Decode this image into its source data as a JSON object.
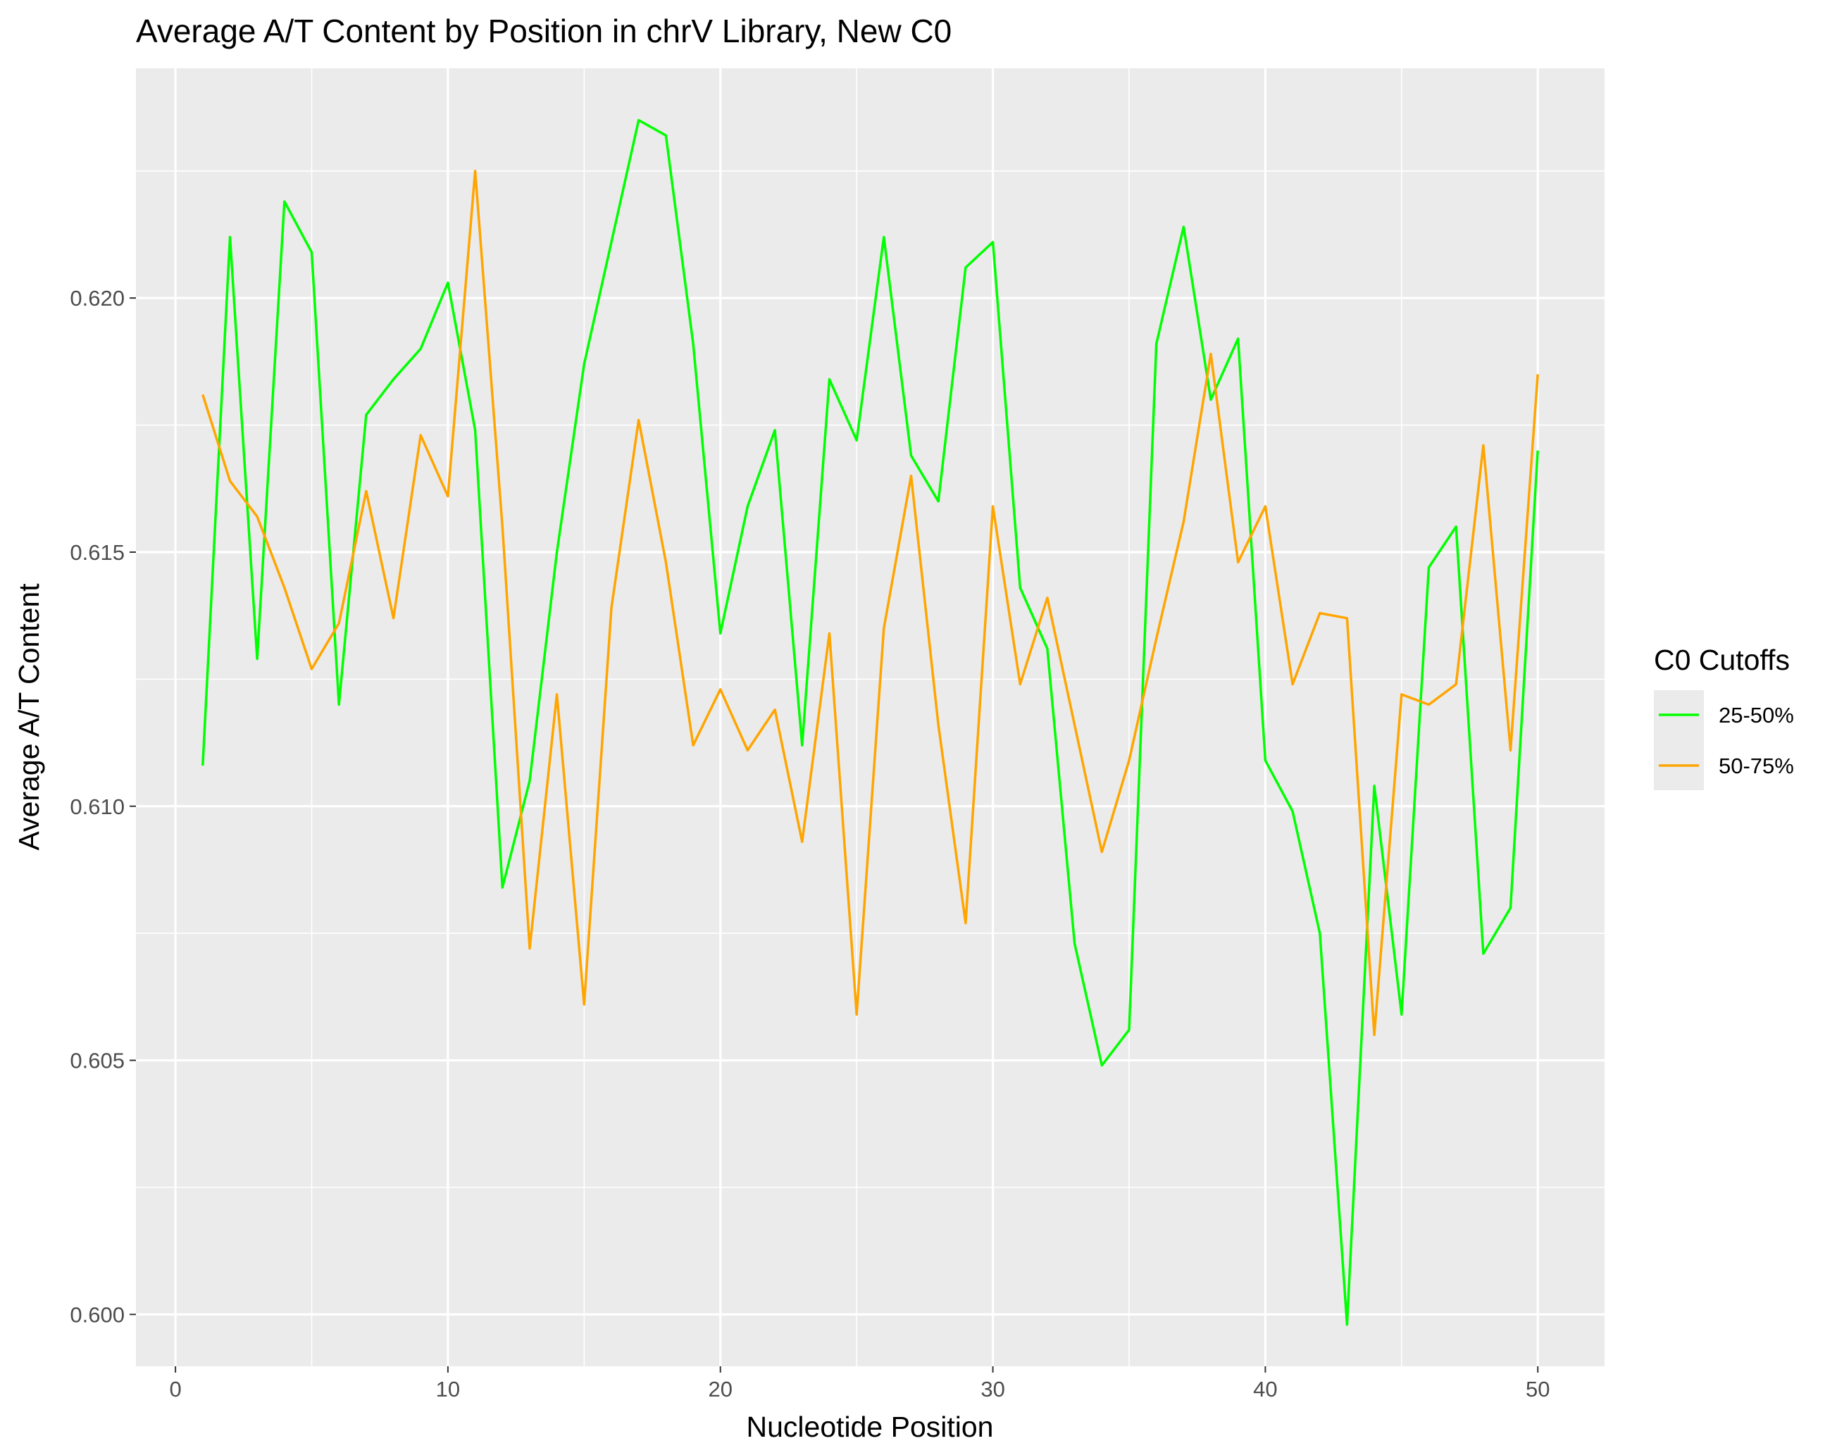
{
  "chart_data": {
    "type": "line",
    "title": "Average A/T Content by Position in chrV Library, New C0",
    "xlabel": "Nucleotide Position",
    "ylabel": "Average A/T Content",
    "xlim": [
      -1.45,
      52.45
    ],
    "ylim": [
      0.59898,
      0.62452
    ],
    "x_ticks": [
      0,
      10,
      20,
      30,
      40,
      50
    ],
    "x_tick_labels": [
      "0",
      "10",
      "20",
      "30",
      "40",
      "50"
    ],
    "x_minor_ticks": [
      5,
      15,
      25,
      35,
      45
    ],
    "y_ticks": [
      0.6,
      0.605,
      0.61,
      0.615,
      0.62
    ],
    "y_tick_labels": [
      "0.600",
      "0.605",
      "0.610",
      "0.615",
      "0.620"
    ],
    "y_minor_ticks": [
      0.6025,
      0.6075,
      0.6125,
      0.6175,
      0.6225
    ],
    "grid": true,
    "legend": {
      "title": "C0 Cutoffs",
      "position": "right"
    },
    "x": [
      1,
      2,
      3,
      4,
      5,
      6,
      7,
      8,
      9,
      10,
      11,
      12,
      13,
      14,
      15,
      16,
      17,
      18,
      19,
      20,
      21,
      22,
      23,
      24,
      25,
      26,
      27,
      28,
      29,
      30,
      31,
      32,
      33,
      34,
      35,
      36,
      37,
      38,
      39,
      40,
      41,
      42,
      43,
      44,
      45,
      46,
      47,
      48,
      49,
      50
    ],
    "series": [
      {
        "name": "25-50%",
        "color": "#00ff00",
        "values": [
          0.6108,
          0.6212,
          0.6129,
          0.6219,
          0.6209,
          0.612,
          0.6177,
          0.6184,
          0.619,
          0.6203,
          0.6174,
          0.6084,
          0.6105,
          0.615,
          0.6187,
          0.6211,
          0.6235,
          0.6232,
          0.6191,
          0.6134,
          0.6159,
          0.6174,
          0.6112,
          0.6184,
          0.6172,
          0.6212,
          0.6169,
          0.616,
          0.6206,
          0.6211,
          0.6143,
          0.6131,
          0.6073,
          0.6049,
          0.6056,
          0.6191,
          0.6214,
          0.618,
          0.6192,
          0.6109,
          0.6099,
          0.6075,
          0.5998,
          0.6104,
          0.6059,
          0.6147,
          0.6155,
          0.6071,
          0.608,
          0.617
        ]
      },
      {
        "name": "50-75%",
        "color": "#ffa500",
        "values": [
          0.6181,
          0.6164,
          0.6157,
          0.6143,
          0.6127,
          0.6136,
          0.6162,
          0.6137,
          0.6173,
          0.6161,
          0.6225,
          0.6155,
          0.6072,
          0.6122,
          0.6061,
          0.6139,
          0.6176,
          0.6148,
          0.6112,
          0.6123,
          0.6111,
          0.6119,
          0.6093,
          0.6134,
          0.6059,
          0.6135,
          0.6165,
          0.6116,
          0.6077,
          0.6159,
          0.6124,
          0.6141,
          0.6116,
          0.6091,
          0.6109,
          0.6133,
          0.6156,
          0.6189,
          0.6148,
          0.6159,
          0.6124,
          0.6138,
          0.6137,
          0.6055,
          0.6122,
          0.612,
          0.6124,
          0.6171,
          0.6111,
          0.6185
        ]
      }
    ]
  },
  "colors": {
    "panel_background": "#ebebeb",
    "grid": "#ffffff",
    "text": "#000000",
    "tick_text": "#4d4d4d"
  }
}
